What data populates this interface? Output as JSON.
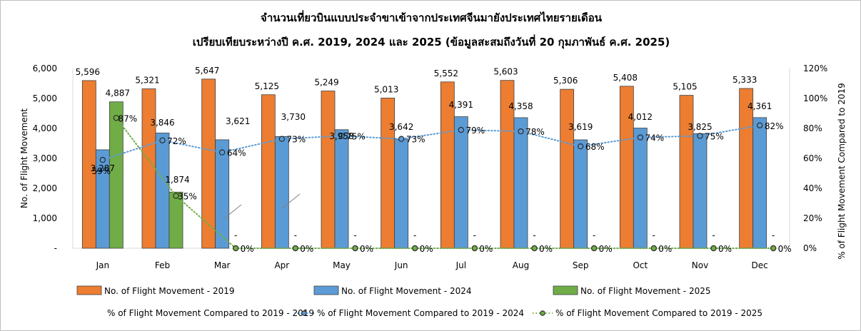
{
  "chart_data": {
    "type": "bar",
    "title": "จำนวนเที่ยวบินแบบประจำขาเข้าจากประเทศจีนมายังประเทศไทยรายเดือน",
    "subtitle": "เปรียบเทียบระหว่างปี ค.ศ. 2019, 2024 และ 2025 (ข้อมูลสะสมถึงวันที่ 20 กุมภาพันธ์ ค.ศ. 2025)",
    "ylabel": "No. of Flight Movement",
    "y2label": "% of Flight Movement Compared to 2019",
    "ylim": [
      0,
      6000
    ],
    "y2lim": [
      0,
      120
    ],
    "y_ticks": [
      "-",
      "1,000",
      "2,000",
      "3,000",
      "4,000",
      "5,000",
      "6,000"
    ],
    "y2_ticks": [
      "0%",
      "20%",
      "40%",
      "60%",
      "80%",
      "100%",
      "120%"
    ],
    "categories": [
      "Jan",
      "Feb",
      "Mar",
      "Apr",
      "May",
      "Jun",
      "Jul",
      "Aug",
      "Sep",
      "Oct",
      "Nov",
      "Dec"
    ],
    "series": [
      {
        "name": "No. of Flight Movement - 2019",
        "color": "#ED7D31",
        "values": [
          5596,
          5321,
          5647,
          5125,
          5249,
          5013,
          5552,
          5603,
          5306,
          5408,
          5105,
          5333
        ],
        "labels": [
          "5,596",
          "5,321",
          "5,647",
          "5,125",
          "5,249",
          "5,013",
          "5,552",
          "5,603",
          "5,306",
          "5,408",
          "5,105",
          "5,333"
        ]
      },
      {
        "name": "No. of Flight Movement - 2024",
        "color": "#5B9BD5",
        "values": [
          3287,
          3846,
          3621,
          3730,
          3958,
          3642,
          4391,
          4358,
          3619,
          4012,
          3825,
          4361
        ],
        "labels": [
          "3,287",
          "3,846",
          "3,621",
          "3,730",
          "3,958",
          "3,642",
          "4,391",
          "4,358",
          "3,619",
          "4,012",
          "3,825",
          "4,361"
        ]
      },
      {
        "name": "No. of Flight Movement - 2025",
        "color": "#70AD47",
        "values": [
          4887,
          1874,
          0,
          0,
          0,
          0,
          0,
          0,
          0,
          0,
          0,
          0
        ],
        "labels": [
          "4,887",
          "1,874",
          "-",
          "-",
          "-",
          "-",
          "-",
          "-",
          "-",
          "-",
          "-",
          "-"
        ]
      }
    ],
    "pct_series": [
      {
        "name": "% of Flight Movement Compared to 2019 - 2019",
        "color": "#ED7D31",
        "values": [],
        "labels": []
      },
      {
        "name": "% of Flight Movement Compared to 2019 - 2024",
        "color": "#5B9BD5",
        "values": [
          59,
          72,
          64,
          73,
          75,
          73,
          79,
          78,
          68,
          74,
          75,
          82
        ],
        "labels": [
          "59%",
          "72%",
          "64%",
          "73%",
          "75%",
          "73%",
          "79%",
          "78%",
          "68%",
          "74%",
          "75%",
          "82%"
        ]
      },
      {
        "name": "% of Flight Movement Compared to 2019 - 2025",
        "color": "#70AD47",
        "values": [
          87,
          35,
          0,
          0,
          0,
          0,
          0,
          0,
          0,
          0,
          0,
          0
        ],
        "labels": [
          "87%",
          "35%",
          "0%",
          "0%",
          "0%",
          "0%",
          "0%",
          "0%",
          "0%",
          "0%",
          "0%",
          "0%"
        ]
      }
    ],
    "grid": false,
    "legend_position": "bottom"
  }
}
